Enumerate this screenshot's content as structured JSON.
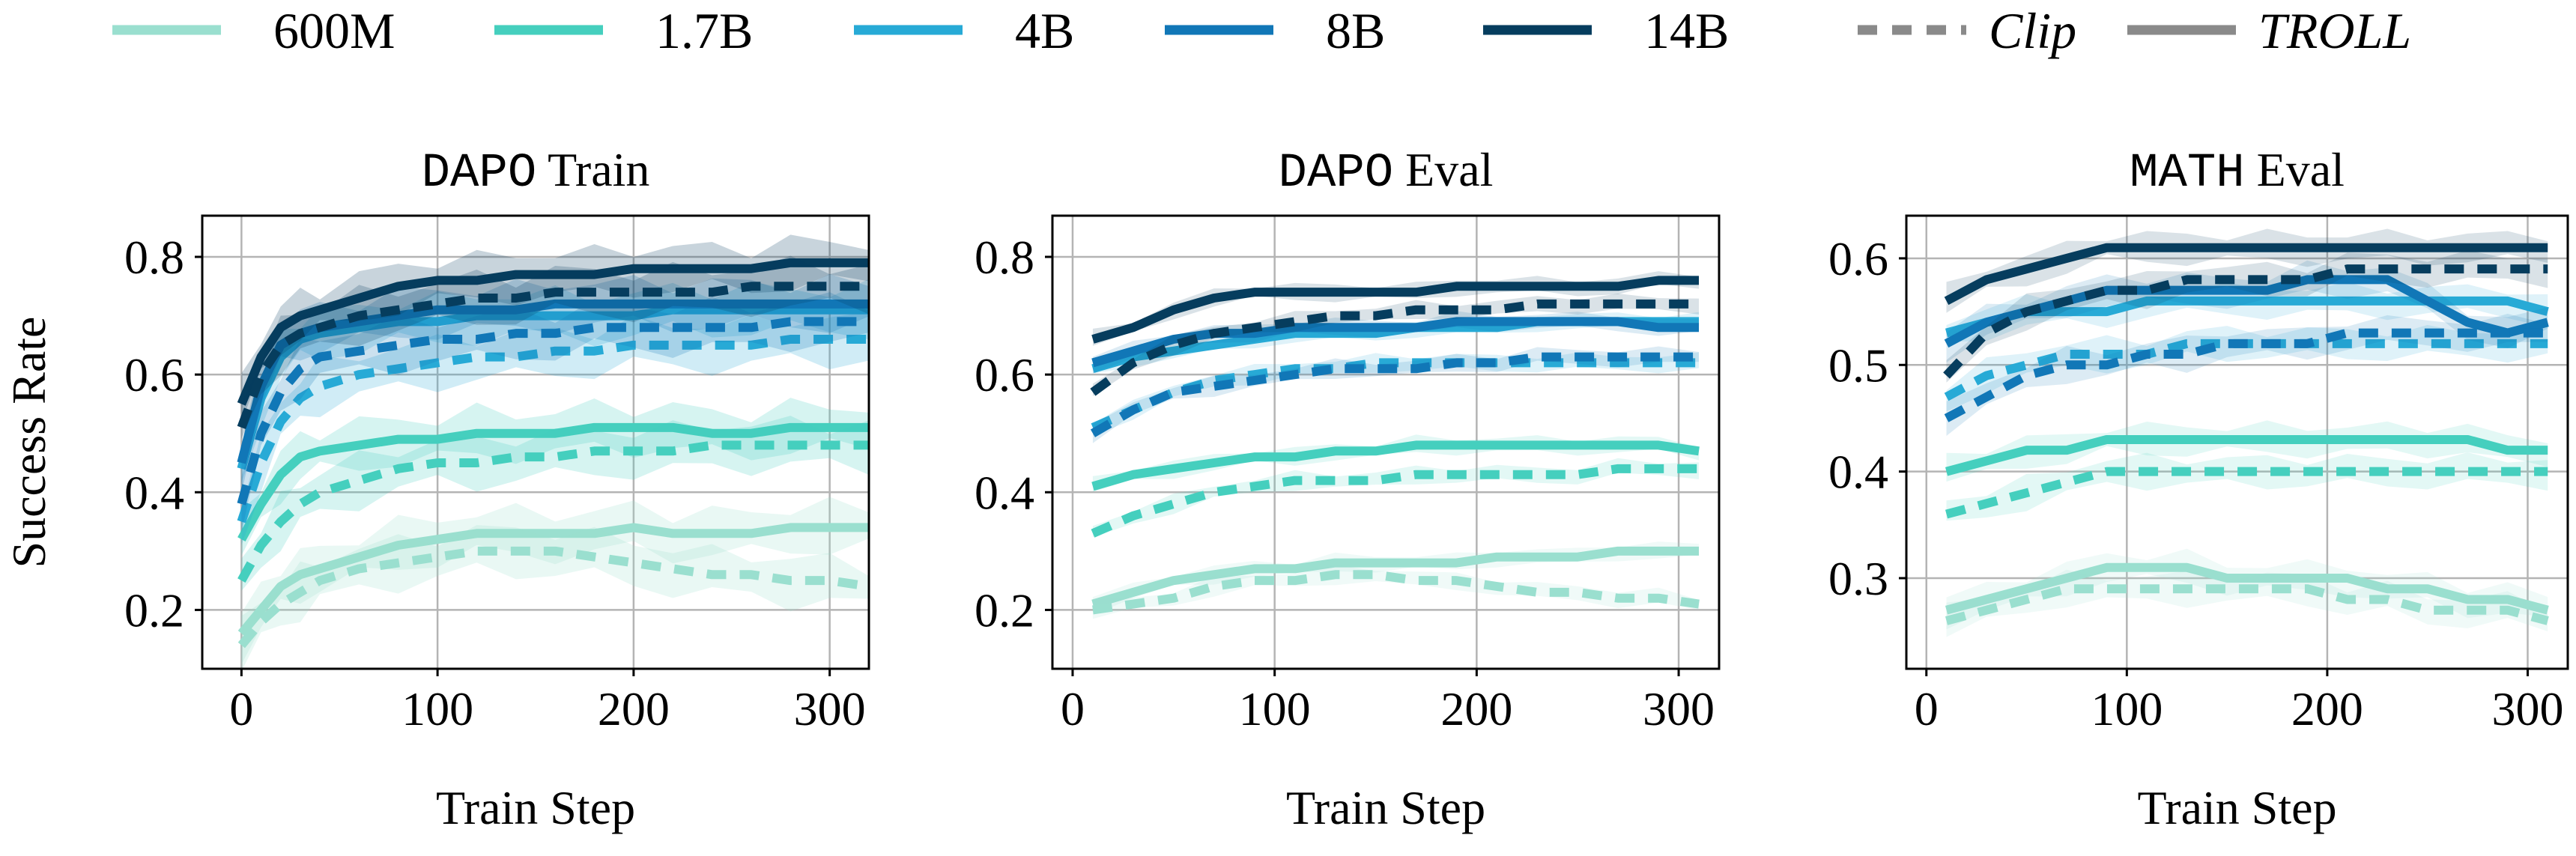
{
  "legend": {
    "models": [
      {
        "label": "600M",
        "color": "#9adfcf"
      },
      {
        "label": "1.7B",
        "color": "#45cfbe"
      },
      {
        "label": "4B",
        "color": "#27aad6"
      },
      {
        "label": "8B",
        "color": "#1177b7"
      },
      {
        "label": "14B",
        "color": "#063d5e"
      }
    ],
    "styles": [
      {
        "label": "Clip",
        "dash": "dashed",
        "color": "#8a8a8a"
      },
      {
        "label": "TROLL",
        "dash": "solid",
        "color": "#8a8a8a"
      }
    ]
  },
  "chart_data": [
    {
      "type": "line",
      "title_mono": "DAPO",
      "title_rest": "Train",
      "xlabel": "Train Step",
      "ylabel": "Success Rate",
      "xlim": [
        -20,
        320
      ],
      "ylim": [
        0.1,
        0.87
      ],
      "xticks": [
        0,
        100,
        200,
        300
      ],
      "yticks": [
        0.2,
        0.4,
        0.6,
        0.8
      ],
      "ytick_labels": [
        "0.2",
        "0.4",
        "0.6",
        "0.8"
      ],
      "grid": true,
      "x": [
        0,
        10,
        20,
        30,
        40,
        60,
        80,
        100,
        120,
        140,
        160,
        180,
        200,
        220,
        240,
        260,
        280,
        300,
        320
      ],
      "series": [
        {
          "model": "600M",
          "style": "TROLL",
          "band": true,
          "values": [
            0.16,
            0.2,
            0.24,
            0.26,
            0.27,
            0.29,
            0.31,
            0.32,
            0.33,
            0.33,
            0.33,
            0.33,
            0.34,
            0.33,
            0.33,
            0.33,
            0.34,
            0.34,
            0.34
          ]
        },
        {
          "model": "600M",
          "style": "Clip",
          "band": true,
          "values": [
            0.14,
            0.18,
            0.21,
            0.23,
            0.25,
            0.27,
            0.28,
            0.29,
            0.3,
            0.3,
            0.3,
            0.29,
            0.28,
            0.27,
            0.26,
            0.26,
            0.25,
            0.25,
            0.24
          ]
        },
        {
          "model": "1.7B",
          "style": "TROLL",
          "band": true,
          "values": [
            0.32,
            0.38,
            0.43,
            0.46,
            0.47,
            0.48,
            0.49,
            0.49,
            0.5,
            0.5,
            0.5,
            0.51,
            0.51,
            0.51,
            0.5,
            0.5,
            0.51,
            0.51,
            0.51
          ]
        },
        {
          "model": "1.7B",
          "style": "Clip",
          "band": true,
          "values": [
            0.25,
            0.31,
            0.35,
            0.38,
            0.4,
            0.42,
            0.44,
            0.45,
            0.45,
            0.46,
            0.46,
            0.47,
            0.47,
            0.47,
            0.48,
            0.48,
            0.48,
            0.48,
            0.48
          ]
        },
        {
          "model": "4B",
          "style": "TROLL",
          "band": true,
          "values": [
            0.44,
            0.56,
            0.63,
            0.66,
            0.67,
            0.68,
            0.69,
            0.69,
            0.7,
            0.7,
            0.7,
            0.7,
            0.7,
            0.71,
            0.71,
            0.71,
            0.71,
            0.71,
            0.71
          ]
        },
        {
          "model": "4B",
          "style": "Clip",
          "band": true,
          "values": [
            0.35,
            0.45,
            0.52,
            0.56,
            0.58,
            0.6,
            0.61,
            0.62,
            0.63,
            0.63,
            0.64,
            0.64,
            0.65,
            0.65,
            0.65,
            0.65,
            0.66,
            0.66,
            0.66
          ]
        },
        {
          "model": "8B",
          "style": "TROLL",
          "band": true,
          "values": [
            0.45,
            0.58,
            0.65,
            0.67,
            0.68,
            0.69,
            0.7,
            0.71,
            0.71,
            0.71,
            0.72,
            0.72,
            0.72,
            0.72,
            0.72,
            0.72,
            0.72,
            0.72,
            0.72
          ]
        },
        {
          "model": "8B",
          "style": "Clip",
          "band": true,
          "values": [
            0.38,
            0.5,
            0.57,
            0.61,
            0.63,
            0.64,
            0.65,
            0.66,
            0.66,
            0.67,
            0.67,
            0.68,
            0.68,
            0.68,
            0.68,
            0.68,
            0.69,
            0.69,
            0.69
          ]
        },
        {
          "model": "14B",
          "style": "TROLL",
          "band": true,
          "values": [
            0.55,
            0.63,
            0.68,
            0.7,
            0.71,
            0.73,
            0.75,
            0.76,
            0.76,
            0.77,
            0.77,
            0.77,
            0.78,
            0.78,
            0.78,
            0.78,
            0.79,
            0.79,
            0.79
          ]
        },
        {
          "model": "14B",
          "style": "Clip",
          "band": true,
          "values": [
            0.51,
            0.6,
            0.65,
            0.67,
            0.68,
            0.7,
            0.71,
            0.72,
            0.73,
            0.73,
            0.74,
            0.74,
            0.74,
            0.74,
            0.74,
            0.75,
            0.75,
            0.75,
            0.75
          ]
        }
      ]
    },
    {
      "type": "line",
      "title_mono": "DAPO",
      "title_rest": "Eval",
      "xlabel": "Train Step",
      "ylabel": "",
      "xlim": [
        -10,
        320
      ],
      "ylim": [
        0.1,
        0.87
      ],
      "xticks": [
        0,
        100,
        200,
        300
      ],
      "yticks": [
        0.2,
        0.4,
        0.6,
        0.8
      ],
      "ytick_labels": [
        "0.2",
        "0.4",
        "0.6",
        "0.8"
      ],
      "grid": true,
      "x": [
        10,
        30,
        50,
        70,
        90,
        110,
        130,
        150,
        170,
        190,
        210,
        230,
        250,
        270,
        290,
        310
      ],
      "series": [
        {
          "model": "600M",
          "style": "TROLL",
          "band": true,
          "values": [
            0.21,
            0.23,
            0.25,
            0.26,
            0.27,
            0.27,
            0.28,
            0.28,
            0.28,
            0.28,
            0.29,
            0.29,
            0.29,
            0.3,
            0.3,
            0.3
          ]
        },
        {
          "model": "600M",
          "style": "Clip",
          "band": true,
          "values": [
            0.2,
            0.21,
            0.22,
            0.24,
            0.25,
            0.25,
            0.26,
            0.26,
            0.25,
            0.25,
            0.24,
            0.23,
            0.23,
            0.22,
            0.22,
            0.21
          ]
        },
        {
          "model": "1.7B",
          "style": "TROLL",
          "band": true,
          "values": [
            0.41,
            0.43,
            0.44,
            0.45,
            0.46,
            0.46,
            0.47,
            0.47,
            0.48,
            0.48,
            0.48,
            0.48,
            0.48,
            0.48,
            0.48,
            0.47
          ]
        },
        {
          "model": "1.7B",
          "style": "Clip",
          "band": true,
          "values": [
            0.33,
            0.36,
            0.38,
            0.4,
            0.41,
            0.42,
            0.42,
            0.42,
            0.43,
            0.43,
            0.43,
            0.43,
            0.43,
            0.44,
            0.44,
            0.44
          ]
        },
        {
          "model": "4B",
          "style": "TROLL",
          "band": true,
          "values": [
            0.61,
            0.63,
            0.64,
            0.65,
            0.66,
            0.67,
            0.67,
            0.67,
            0.68,
            0.68,
            0.68,
            0.69,
            0.69,
            0.69,
            0.69,
            0.69
          ]
        },
        {
          "model": "4B",
          "style": "Clip",
          "band": true,
          "values": [
            0.51,
            0.54,
            0.57,
            0.59,
            0.6,
            0.61,
            0.61,
            0.62,
            0.62,
            0.62,
            0.62,
            0.62,
            0.62,
            0.62,
            0.62,
            0.62
          ]
        },
        {
          "model": "8B",
          "style": "TROLL",
          "band": true,
          "values": [
            0.62,
            0.64,
            0.66,
            0.67,
            0.67,
            0.68,
            0.68,
            0.68,
            0.68,
            0.69,
            0.69,
            0.69,
            0.69,
            0.69,
            0.68,
            0.68
          ]
        },
        {
          "model": "8B",
          "style": "Clip",
          "band": true,
          "values": [
            0.5,
            0.54,
            0.57,
            0.58,
            0.59,
            0.6,
            0.61,
            0.61,
            0.61,
            0.62,
            0.62,
            0.63,
            0.63,
            0.63,
            0.63,
            0.63
          ]
        },
        {
          "model": "14B",
          "style": "TROLL",
          "band": true,
          "values": [
            0.66,
            0.68,
            0.71,
            0.73,
            0.74,
            0.74,
            0.74,
            0.74,
            0.74,
            0.75,
            0.75,
            0.75,
            0.75,
            0.75,
            0.76,
            0.76
          ]
        },
        {
          "model": "14B",
          "style": "Clip",
          "band": true,
          "values": [
            0.57,
            0.62,
            0.65,
            0.67,
            0.68,
            0.69,
            0.7,
            0.7,
            0.71,
            0.71,
            0.71,
            0.72,
            0.72,
            0.72,
            0.72,
            0.72
          ]
        }
      ]
    },
    {
      "type": "line",
      "title_mono": "MATH",
      "title_rest": "Eval",
      "xlabel": "Train Step",
      "ylabel": "",
      "xlim": [
        -10,
        320
      ],
      "ylim": [
        0.215,
        0.64
      ],
      "xticks": [
        0,
        100,
        200,
        300
      ],
      "yticks": [
        0.3,
        0.4,
        0.5,
        0.6
      ],
      "ytick_labels": [
        "0.3",
        "0.4",
        "0.5",
        "0.6"
      ],
      "grid": true,
      "x": [
        10,
        30,
        50,
        70,
        90,
        110,
        130,
        150,
        170,
        190,
        210,
        230,
        250,
        270,
        290,
        310
      ],
      "series": [
        {
          "model": "600M",
          "style": "TROLL",
          "band": true,
          "values": [
            0.27,
            0.28,
            0.29,
            0.3,
            0.31,
            0.31,
            0.31,
            0.3,
            0.3,
            0.3,
            0.3,
            0.29,
            0.29,
            0.28,
            0.28,
            0.27
          ]
        },
        {
          "model": "600M",
          "style": "Clip",
          "band": true,
          "values": [
            0.26,
            0.27,
            0.28,
            0.29,
            0.29,
            0.29,
            0.29,
            0.29,
            0.29,
            0.29,
            0.28,
            0.28,
            0.27,
            0.27,
            0.27,
            0.26
          ]
        },
        {
          "model": "1.7B",
          "style": "TROLL",
          "band": true,
          "values": [
            0.4,
            0.41,
            0.42,
            0.42,
            0.43,
            0.43,
            0.43,
            0.43,
            0.43,
            0.43,
            0.43,
            0.43,
            0.43,
            0.43,
            0.42,
            0.42
          ]
        },
        {
          "model": "1.7B",
          "style": "Clip",
          "band": true,
          "values": [
            0.36,
            0.37,
            0.38,
            0.39,
            0.4,
            0.4,
            0.4,
            0.4,
            0.4,
            0.4,
            0.4,
            0.4,
            0.4,
            0.4,
            0.4,
            0.4
          ]
        },
        {
          "model": "4B",
          "style": "TROLL",
          "band": true,
          "values": [
            0.53,
            0.54,
            0.55,
            0.55,
            0.55,
            0.56,
            0.56,
            0.56,
            0.56,
            0.56,
            0.56,
            0.56,
            0.56,
            0.56,
            0.56,
            0.55
          ]
        },
        {
          "model": "4B",
          "style": "Clip",
          "band": true,
          "values": [
            0.47,
            0.49,
            0.5,
            0.51,
            0.51,
            0.51,
            0.52,
            0.52,
            0.52,
            0.52,
            0.52,
            0.52,
            0.52,
            0.52,
            0.52,
            0.52
          ]
        },
        {
          "model": "8B",
          "style": "TROLL",
          "band": true,
          "values": [
            0.52,
            0.54,
            0.55,
            0.56,
            0.57,
            0.57,
            0.57,
            0.57,
            0.57,
            0.58,
            0.58,
            0.58,
            0.56,
            0.54,
            0.53,
            0.54
          ]
        },
        {
          "model": "8B",
          "style": "Clip",
          "band": true,
          "values": [
            0.45,
            0.47,
            0.49,
            0.5,
            0.5,
            0.51,
            0.51,
            0.52,
            0.52,
            0.52,
            0.53,
            0.53,
            0.53,
            0.53,
            0.53,
            0.53
          ]
        },
        {
          "model": "14B",
          "style": "TROLL",
          "band": true,
          "values": [
            0.56,
            0.58,
            0.59,
            0.6,
            0.61,
            0.61,
            0.61,
            0.61,
            0.61,
            0.61,
            0.61,
            0.61,
            0.61,
            0.61,
            0.61,
            0.61
          ]
        },
        {
          "model": "14B",
          "style": "Clip",
          "band": true,
          "values": [
            0.49,
            0.53,
            0.55,
            0.56,
            0.57,
            0.57,
            0.58,
            0.58,
            0.58,
            0.58,
            0.59,
            0.59,
            0.59,
            0.59,
            0.59,
            0.59
          ]
        }
      ]
    }
  ]
}
